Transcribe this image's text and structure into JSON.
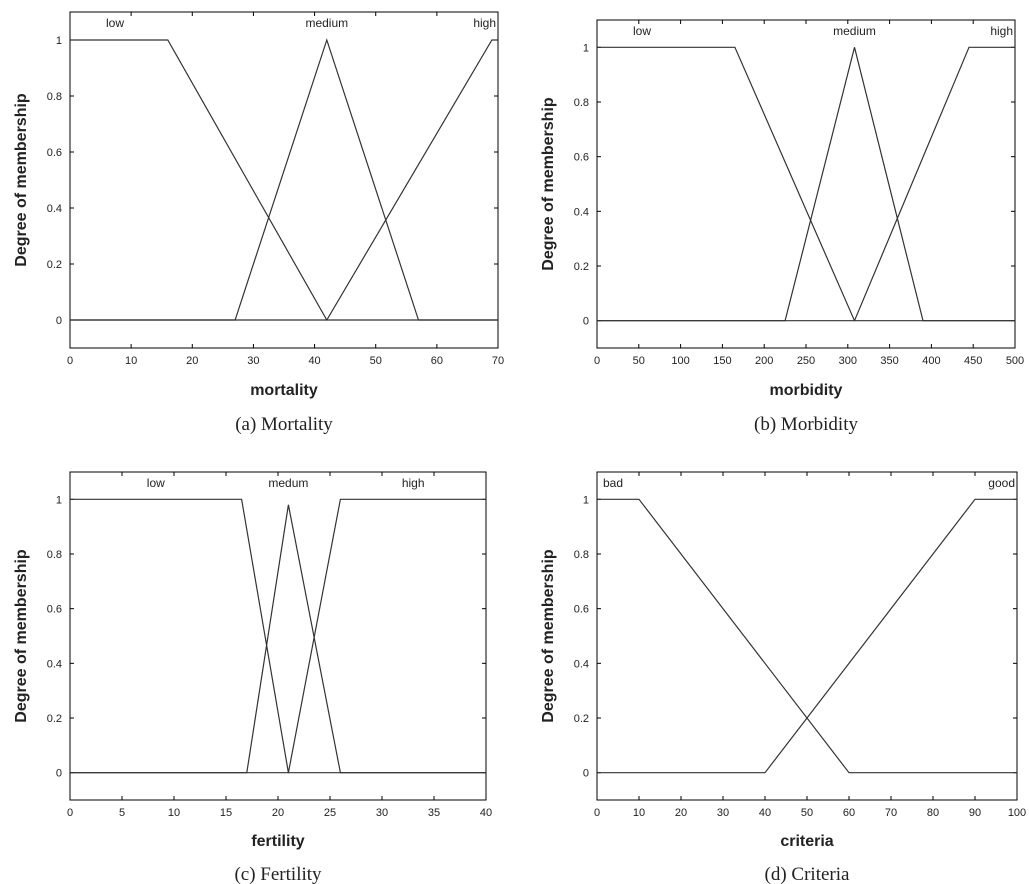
{
  "chart_data": [
    {
      "type": "line",
      "caption": "(a) Mortality",
      "xlabel": "mortality",
      "ylabel": "Degree of membership",
      "xlim": [
        0,
        70
      ],
      "ylim": [
        -0.1,
        1.1
      ],
      "xticks": [
        "0",
        "10",
        "20",
        "30",
        "40",
        "50",
        "60",
        "70"
      ],
      "yticks": [
        "0",
        "0.2",
        "0.4",
        "0.6",
        "0.8",
        "1"
      ],
      "series": [
        {
          "name": "low",
          "color": "#333333",
          "x": [
            0,
            16,
            42,
            70
          ],
          "y": [
            1,
            1,
            0,
            0
          ]
        },
        {
          "name": "medium",
          "color": "#777777",
          "x": [
            0,
            27,
            42,
            57,
            70
          ],
          "y": [
            0,
            0,
            1,
            0,
            0
          ]
        },
        {
          "name": "high",
          "color": "#333333",
          "x": [
            0,
            42,
            69,
            70
          ],
          "y": [
            0,
            0,
            1,
            1
          ]
        }
      ]
    },
    {
      "type": "line",
      "caption": "(b) Morbidity",
      "xlabel": "morbidity",
      "ylabel": "Degree of membership",
      "xlim": [
        0,
        500
      ],
      "ylim": [
        -0.1,
        1.1
      ],
      "xticks": [
        "0",
        "50",
        "100",
        "150",
        "200",
        "250",
        "300",
        "350",
        "400",
        "450",
        "500"
      ],
      "yticks": [
        "0",
        "0.2",
        "0.4",
        "0.6",
        "0.8",
        "1"
      ],
      "series": [
        {
          "name": "low",
          "color": "#333333",
          "x": [
            0,
            165,
            308,
            500
          ],
          "y": [
            1,
            1,
            0,
            0
          ]
        },
        {
          "name": "medium",
          "color": "#777777",
          "x": [
            0,
            225,
            308,
            390,
            500
          ],
          "y": [
            0,
            0,
            1,
            0,
            0
          ]
        },
        {
          "name": "high",
          "color": "#333333",
          "x": [
            0,
            308,
            445,
            500
          ],
          "y": [
            0,
            0,
            1,
            1
          ]
        }
      ]
    },
    {
      "type": "line",
      "caption": "(c) Fertility",
      "xlabel": "fertility",
      "ylabel": "Degree of membership",
      "xlim": [
        0,
        40
      ],
      "ylim": [
        -0.1,
        1.1
      ],
      "xticks": [
        "0",
        "5",
        "10",
        "15",
        "20",
        "25",
        "30",
        "35",
        "40"
      ],
      "yticks": [
        "0",
        "0.2",
        "0.4",
        "0.6",
        "0.8",
        "1"
      ],
      "series": [
        {
          "name": "low",
          "color": "#333333",
          "x": [
            0,
            16.5,
            21,
            40
          ],
          "y": [
            1,
            1,
            0,
            0
          ]
        },
        {
          "name": "medum",
          "color": "#333333",
          "x": [
            0,
            17,
            21,
            26,
            40
          ],
          "y": [
            0,
            0,
            0.98,
            0,
            0
          ]
        },
        {
          "name": "high",
          "color": "#333333",
          "x": [
            0,
            21,
            26,
            40
          ],
          "y": [
            0,
            0,
            1,
            1
          ]
        }
      ]
    },
    {
      "type": "line",
      "caption": "(d) Criteria",
      "xlabel": "criteria",
      "ylabel": "Degree of membership",
      "xlim": [
        0,
        100
      ],
      "ylim": [
        -0.1,
        1.1
      ],
      "xticks": [
        "0",
        "10",
        "20",
        "30",
        "40",
        "50",
        "60",
        "70",
        "80",
        "90",
        "100"
      ],
      "yticks": [
        "0",
        "0.2",
        "0.4",
        "0.6",
        "0.8",
        "1"
      ],
      "series": [
        {
          "name": "bad",
          "color": "#333333",
          "x": [
            0,
            10,
            60,
            100
          ],
          "y": [
            1,
            1,
            0,
            0
          ]
        },
        {
          "name": "good",
          "color": "#333333",
          "x": [
            0,
            40,
            90,
            100
          ],
          "y": [
            0,
            0,
            1,
            1
          ]
        }
      ]
    }
  ]
}
